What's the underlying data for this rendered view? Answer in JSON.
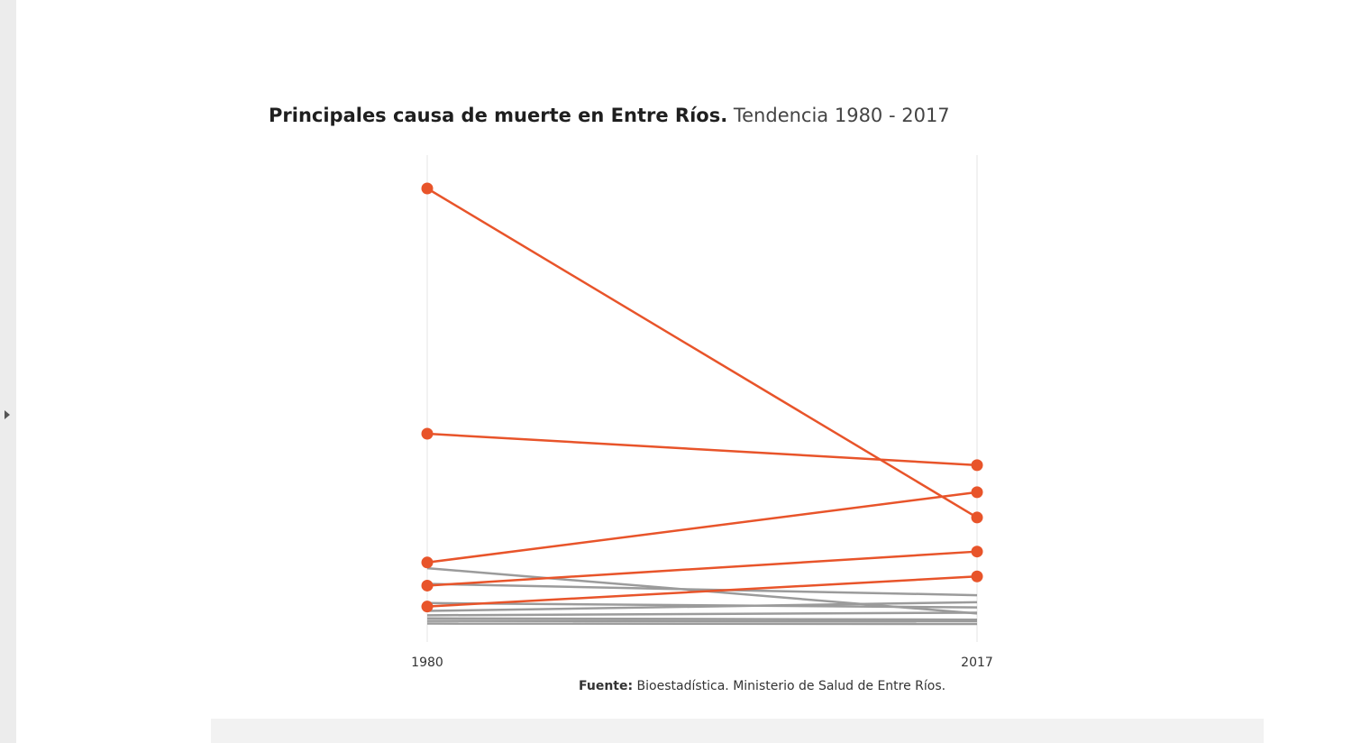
{
  "title": {
    "bold": "Principales causa de muerte en Entre Ríos.",
    "light": "Tendencia 1980 - 2017"
  },
  "source": {
    "label": "Fuente:",
    "text": "Bioestadística. Ministerio de Salud de Entre Ríos."
  },
  "colors": {
    "highlight": "#e8542a",
    "muted": "#9b9b9b",
    "axis": "#e6e6e6"
  },
  "chart_data": {
    "type": "line",
    "x": [
      "1980",
      "2017"
    ],
    "ylim": [
      0,
      100
    ],
    "grid": false,
    "legend": "none",
    "highlighted": [
      {
        "values": [
          100,
          24.6
        ]
      },
      {
        "values": [
          43.8,
          36.6
        ]
      },
      {
        "values": [
          14.3,
          30.4
        ]
      },
      {
        "values": [
          9.0,
          16.8
        ]
      },
      {
        "values": [
          4.2,
          11.1
        ]
      }
    ],
    "other": [
      {
        "values": [
          13.0,
          2.6
        ]
      },
      {
        "values": [
          9.4,
          6.8
        ]
      },
      {
        "values": [
          5.0,
          4.0
        ]
      },
      {
        "values": [
          3.2,
          5.2
        ]
      },
      {
        "values": [
          2.2,
          2.8
        ]
      },
      {
        "values": [
          1.5,
          1.2
        ]
      },
      {
        "values": [
          0.9,
          0.8
        ]
      },
      {
        "values": [
          0.3,
          0.2
        ]
      }
    ]
  }
}
